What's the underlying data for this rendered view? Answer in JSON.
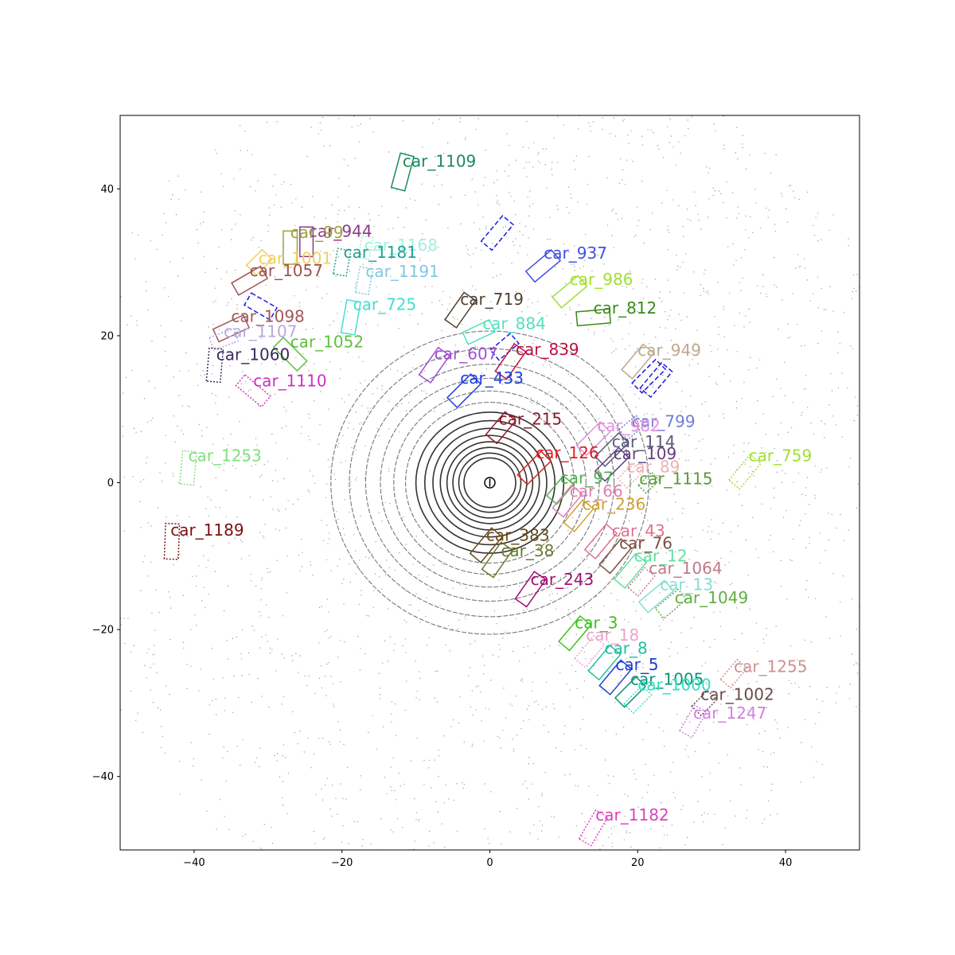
{
  "chart_data": {
    "type": "scatter",
    "title": "",
    "xlabel": "",
    "ylabel": "",
    "xlim": [
      -50,
      50
    ],
    "ylim": [
      -50,
      50
    ],
    "grid": false,
    "x_ticks": [
      -40,
      -20,
      0,
      20,
      40
    ],
    "y_ticks": [
      -40,
      -20,
      0,
      20,
      40
    ],
    "x_tick_labels": [
      "−40",
      "−20",
      "0",
      "20",
      "40"
    ],
    "y_tick_labels": [
      "−40",
      "−20",
      "0",
      "20",
      "40"
    ],
    "ego_position": [
      0,
      0
    ],
    "lidar_rings": [
      {
        "r": 3.5
      },
      {
        "r": 4.2
      },
      {
        "r": 5.0
      },
      {
        "r": 5.8
      },
      {
        "r": 6.7
      },
      {
        "r": 7.7
      },
      {
        "r": 8.8
      },
      {
        "r": 10.0
      },
      {
        "r": 11.4
      },
      {
        "r": 13.0
      },
      {
        "r": 14.8
      },
      {
        "r": 16.8
      },
      {
        "r": 19.0
      },
      {
        "r": 21.5
      }
    ],
    "boxes": [
      {
        "label": "car_1109",
        "x": -11.8,
        "y": 42.3,
        "len": 4.8,
        "wid": 1.9,
        "yaw": 75,
        "style": "solid",
        "color": "#1a8a5a",
        "lx": -11.8,
        "ly": 43.0
      },
      {
        "label": "car_944",
        "x": -24.8,
        "y": 32.8,
        "len": 4.0,
        "wid": 1.8,
        "yaw": 90,
        "style": "solid",
        "color": "#8a3a8a",
        "lx": -24.5,
        "ly": 33.5
      },
      {
        "label": "car_99",
        "x": -27.0,
        "y": 32.0,
        "len": 4.5,
        "wid": 1.9,
        "yaw": 90,
        "style": "solid",
        "color": "#a0a040",
        "lx": -27.0,
        "ly": 33.3
      },
      {
        "label": "car_1168",
        "x": -16.8,
        "y": 32.0,
        "len": 3.0,
        "wid": 1.5,
        "yaw": 80,
        "style": "dotted",
        "color": "#a0f0e0",
        "lx": -17.0,
        "ly": 31.6
      },
      {
        "label": "car_1181",
        "x": -20.0,
        "y": 30.0,
        "len": 3.5,
        "wid": 1.8,
        "yaw": 80,
        "style": "dotted",
        "color": "#20a090",
        "lx": -19.8,
        "ly": 30.6
      },
      {
        "label": "car_1001",
        "x": -31.2,
        "y": 30.0,
        "len": 3.0,
        "wid": 1.9,
        "yaw": 45,
        "style": "solid",
        "color": "#f0d060",
        "lx": -31.3,
        "ly": 29.8
      },
      {
        "label": "car_1057",
        "x": -32.5,
        "y": 27.5,
        "len": 4.5,
        "wid": 1.9,
        "yaw": 30,
        "style": "solid",
        "color": "#a05050",
        "lx": -32.5,
        "ly": 28.1
      },
      {
        "label": "car_1191",
        "x": -17.0,
        "y": 27.5,
        "len": 3.5,
        "wid": 1.8,
        "yaw": 80,
        "style": "dotted",
        "color": "#80c8e0",
        "lx": -16.8,
        "ly": 28.0
      },
      {
        "label": "car_937",
        "x": 7.2,
        "y": 29.5,
        "len": 4.5,
        "wid": 1.9,
        "yaw": 40,
        "style": "solid",
        "color": "#4050e0",
        "lx": 7.3,
        "ly": 30.5
      },
      {
        "label": "car_986",
        "x": 10.8,
        "y": 26.0,
        "len": 4.5,
        "wid": 1.9,
        "yaw": 40,
        "style": "solid",
        "color": "#a0e030",
        "lx": 10.8,
        "ly": 26.9
      },
      {
        "label": "car_719",
        "x": -4.0,
        "y": 23.5,
        "len": 4.5,
        "wid": 1.9,
        "yaw": 55,
        "style": "solid",
        "color": "#504030",
        "lx": -4.0,
        "ly": 24.2
      },
      {
        "label": "car_725",
        "x": -18.8,
        "y": 22.5,
        "len": 4.5,
        "wid": 1.9,
        "yaw": 80,
        "style": "solid",
        "color": "#40e0d0",
        "lx": -18.5,
        "ly": 23.5
      },
      {
        "label": "car_812",
        "x": 14.0,
        "y": 22.5,
        "len": 4.5,
        "wid": 1.9,
        "yaw": 5,
        "style": "solid",
        "color": "#3a8a1a",
        "lx": 14.0,
        "ly": 23.0
      },
      {
        "label": "car_884",
        "x": -1.5,
        "y": 20.5,
        "len": 4.0,
        "wid": 1.8,
        "yaw": 25,
        "style": "solid",
        "color": "#50e0c0",
        "lx": -1.0,
        "ly": 20.9
      },
      {
        "label": "car_1098",
        "x": -35.0,
        "y": 21.0,
        "len": 4.5,
        "wid": 1.9,
        "yaw": 25,
        "style": "solid",
        "color": "#a05858",
        "lx": -35.0,
        "ly": 21.9
      },
      {
        "label": "car_1107",
        "x": -36.0,
        "y": 19.5,
        "len": 3.5,
        "wid": 1.8,
        "yaw": 20,
        "style": "dotted",
        "color": "#b8a8e0",
        "lx": -36.0,
        "ly": 19.8
      },
      {
        "label": "car_1052",
        "x": -27.0,
        "y": 17.5,
        "len": 4.5,
        "wid": 1.9,
        "yaw": -45,
        "style": "solid",
        "color": "#60c040",
        "lx": -27.0,
        "ly": 18.4
      },
      {
        "label": "car_1060",
        "x": -37.2,
        "y": 16.0,
        "len": 4.5,
        "wid": 1.9,
        "yaw": 85,
        "style": "dotted",
        "color": "#3a2a5a",
        "lx": -37.0,
        "ly": 16.7
      },
      {
        "label": "car_949",
        "x": 20.0,
        "y": 16.5,
        "len": 4.5,
        "wid": 1.9,
        "yaw": 50,
        "style": "solid",
        "color": "#c0a890",
        "lx": 20.0,
        "ly": 17.3
      },
      {
        "label": "car_607",
        "x": -7.5,
        "y": 16.0,
        "len": 4.5,
        "wid": 1.9,
        "yaw": 55,
        "style": "solid",
        "color": "#a050d0",
        "lx": -7.5,
        "ly": 16.8
      },
      {
        "label": "car_839",
        "x": 2.8,
        "y": 16.5,
        "len": 4.5,
        "wid": 1.9,
        "yaw": 55,
        "style": "solid",
        "color": "#c01040",
        "lx": 3.5,
        "ly": 17.4
      },
      {
        "label": "car_1110",
        "x": -32.0,
        "y": 12.5,
        "len": 4.5,
        "wid": 1.9,
        "yaw": -40,
        "style": "dotted",
        "color": "#d030c0",
        "lx": -32.0,
        "ly": 13.1
      },
      {
        "label": "car_433",
        "x": -3.5,
        "y": 12.5,
        "len": 4.5,
        "wid": 1.9,
        "yaw": 45,
        "style": "solid",
        "color": "#2040e0",
        "lx": -4.0,
        "ly": 13.5
      },
      {
        "label": "car_215",
        "x": 1.5,
        "y": 7.5,
        "len": 4.0,
        "wid": 1.9,
        "yaw": 50,
        "style": "solid",
        "color": "#8a1a2a",
        "lx": 1.2,
        "ly": 7.9
      },
      {
        "label": "car_799",
        "x": 19.2,
        "y": 7.5,
        "len": 3.0,
        "wid": 1.8,
        "yaw": 40,
        "style": "dotted",
        "color": "#7080d0",
        "lx": 19.2,
        "ly": 7.6
      },
      {
        "label": "car_982",
        "x": 14.0,
        "y": 6.0,
        "len": 4.5,
        "wid": 1.9,
        "yaw": 45,
        "style": "solid",
        "color": "#e090e0",
        "lx": 14.5,
        "ly": 7.0
      },
      {
        "label": "car_114",
        "x": 16.5,
        "y": 4.5,
        "len": 4.5,
        "wid": 1.9,
        "yaw": 45,
        "style": "solid",
        "color": "#5a5a7a",
        "lx": 16.5,
        "ly": 4.8
      },
      {
        "label": "car_109",
        "x": 16.5,
        "y": 2.5,
        "len": 4.5,
        "wid": 1.9,
        "yaw": 45,
        "style": "solid",
        "color": "#604080",
        "lx": 16.7,
        "ly": 3.2
      },
      {
        "label": "car_126",
        "x": 6.0,
        "y": 2.0,
        "len": 4.5,
        "wid": 1.9,
        "yaw": 45,
        "style": "solid",
        "color": "#e02020",
        "lx": 6.2,
        "ly": 3.3
      },
      {
        "label": "car_759",
        "x": 34.5,
        "y": 1.5,
        "len": 4.5,
        "wid": 1.9,
        "yaw": 50,
        "style": "dotted",
        "color": "#a0e030",
        "lx": 35.0,
        "ly": 2.9
      },
      {
        "label": "car_89",
        "x": 19.0,
        "y": 1.0,
        "len": 3.0,
        "wid": 1.8,
        "yaw": 45,
        "style": "dotted",
        "color": "#f0b0b0",
        "lx": 18.5,
        "ly": 1.4
      },
      {
        "label": "car_1115",
        "x": 21.5,
        "y": 0.0,
        "len": 2.5,
        "wid": 1.5,
        "yaw": 45,
        "style": "dotted",
        "color": "#5a9a3a",
        "lx": 20.2,
        "ly": -0.2
      },
      {
        "label": "car_97",
        "x": 9.5,
        "y": -1.0,
        "len": 3.5,
        "wid": 1.8,
        "yaw": 50,
        "style": "solid",
        "color": "#50b050",
        "lx": 9.5,
        "ly": -0.1
      },
      {
        "label": "car_66",
        "x": 10.5,
        "y": -2.5,
        "len": 4.0,
        "wid": 1.9,
        "yaw": 50,
        "style": "solid",
        "color": "#e080b0",
        "lx": 10.8,
        "ly": -1.9
      },
      {
        "label": "car_236",
        "x": 12.0,
        "y": -4.5,
        "len": 4.0,
        "wid": 1.9,
        "yaw": 50,
        "style": "solid",
        "color": "#d0a030",
        "lx": 12.5,
        "ly": -3.7
      },
      {
        "label": "car_43",
        "x": 15.0,
        "y": -8.0,
        "len": 4.5,
        "wid": 1.9,
        "yaw": 50,
        "style": "solid",
        "color": "#e07090",
        "lx": 16.5,
        "ly": -7.3
      },
      {
        "label": "car_383",
        "x": -0.5,
        "y": -8.5,
        "len": 4.5,
        "wid": 1.9,
        "yaw": 50,
        "style": "solid",
        "color": "#6a4a1a",
        "lx": -0.5,
        "ly": -7.9
      },
      {
        "label": "car_76",
        "x": 17.0,
        "y": -10.0,
        "len": 4.5,
        "wid": 1.9,
        "yaw": 50,
        "style": "solid",
        "color": "#7a5040",
        "lx": 17.5,
        "ly": -9.0
      },
      {
        "label": "car_38",
        "x": 1.0,
        "y": -10.5,
        "len": 4.5,
        "wid": 1.9,
        "yaw": 55,
        "style": "solid",
        "color": "#6a7a2a",
        "lx": 1.5,
        "ly": -10.0
      },
      {
        "label": "car_12",
        "x": 19.0,
        "y": -12.0,
        "len": 4.5,
        "wid": 1.9,
        "yaw": 50,
        "style": "solid",
        "color": "#60e0a0",
        "lx": 19.5,
        "ly": -10.7
      },
      {
        "label": "car_1064",
        "x": 20.5,
        "y": -13.5,
        "len": 3.5,
        "wid": 1.8,
        "yaw": 50,
        "style": "dotted",
        "color": "#c07a8a",
        "lx": 21.5,
        "ly": -12.4
      },
      {
        "label": "car_243",
        "x": 5.5,
        "y": -14.5,
        "len": 4.5,
        "wid": 1.9,
        "yaw": 55,
        "style": "solid",
        "color": "#a01070",
        "lx": 5.5,
        "ly": -13.9
      },
      {
        "label": "car_13",
        "x": 22.5,
        "y": -15.5,
        "len": 4.5,
        "wid": 1.9,
        "yaw": 40,
        "style": "solid",
        "color": "#80e0d0",
        "lx": 23.0,
        "ly": -14.6
      },
      {
        "label": "car_1049",
        "x": 24.5,
        "y": -16.5,
        "len": 4.0,
        "wid": 1.8,
        "yaw": 40,
        "style": "dotted",
        "color": "#60b040",
        "lx": 25.0,
        "ly": -16.4
      },
      {
        "label": "car_3",
        "x": 11.5,
        "y": -20.5,
        "len": 4.5,
        "wid": 1.9,
        "yaw": 50,
        "style": "solid",
        "color": "#40c020",
        "lx": 11.5,
        "ly": -19.8
      },
      {
        "label": "car_18",
        "x": 13.5,
        "y": -23.0,
        "len": 4.0,
        "wid": 1.9,
        "yaw": 50,
        "style": "dotted",
        "color": "#f0a0d0",
        "lx": 13.0,
        "ly": -21.5
      },
      {
        "label": "car_8",
        "x": 15.5,
        "y": -24.5,
        "len": 4.5,
        "wid": 1.9,
        "yaw": 50,
        "style": "solid",
        "color": "#20c0a0",
        "lx": 15.5,
        "ly": -23.3
      },
      {
        "label": "car_5",
        "x": 17.0,
        "y": -26.5,
        "len": 4.5,
        "wid": 1.9,
        "yaw": 50,
        "style": "solid",
        "color": "#2040d0",
        "lx": 17.0,
        "ly": -25.5
      },
      {
        "label": "car_1255",
        "x": 33.0,
        "y": -26.0,
        "len": 3.5,
        "wid": 1.8,
        "yaw": 50,
        "style": "dotted",
        "color": "#d09090",
        "lx": 33.0,
        "ly": -25.8
      },
      {
        "label": "car_1005",
        "x": 19.0,
        "y": -28.5,
        "len": 4.0,
        "wid": 1.8,
        "yaw": 45,
        "style": "solid",
        "color": "#10907a",
        "lx": 19.0,
        "ly": -27.5
      },
      {
        "label": "car_1000",
        "x": 20.0,
        "y": -29.5,
        "len": 3.5,
        "wid": 1.8,
        "yaw": 45,
        "style": "dotted",
        "color": "#30e0c0",
        "lx": 20.0,
        "ly": -28.3
      },
      {
        "label": "car_1002",
        "x": 29.0,
        "y": -30.0,
        "len": 3.0,
        "wid": 1.8,
        "yaw": 45,
        "style": "dotted",
        "color": "#6a4a4a",
        "lx": 28.5,
        "ly": -29.6
      },
      {
        "label": "car_1247",
        "x": 27.5,
        "y": -32.5,
        "len": 4.0,
        "wid": 1.9,
        "yaw": 60,
        "style": "dotted",
        "color": "#d080e0",
        "lx": 27.5,
        "ly": -32.1
      },
      {
        "label": "car_1253",
        "x": -40.8,
        "y": 2.0,
        "len": 4.5,
        "wid": 1.9,
        "yaw": 85,
        "style": "dotted",
        "color": "#80e080",
        "lx": -40.8,
        "ly": 2.9
      },
      {
        "label": "car_1189",
        "x": -43.0,
        "y": -8.0,
        "len": 4.8,
        "wid": 1.9,
        "yaw": 88,
        "style": "dotted",
        "color": "#7a1010",
        "lx": -43.2,
        "ly": -7.2
      },
      {
        "label": "car_1182",
        "x": 14.0,
        "y": -47.0,
        "len": 4.5,
        "wid": 1.9,
        "yaw": 60,
        "style": "dotted",
        "color": "#e040c0",
        "lx": 14.3,
        "ly": -46.0
      }
    ],
    "unlabeled_boxes": [
      {
        "x": 1.0,
        "y": 34.0,
        "len": 4.5,
        "wid": 1.9,
        "yaw": 50,
        "style": "dashed",
        "color": "#1a1ae0"
      },
      {
        "x": -31.0,
        "y": 24.0,
        "len": 4.0,
        "wid": 1.9,
        "yaw": -30,
        "style": "dashed",
        "color": "#1a1ae0"
      },
      {
        "x": 2.0,
        "y": 18.5,
        "len": 3.5,
        "wid": 1.8,
        "yaw": 40,
        "style": "dashed",
        "color": "#1a1ae0"
      },
      {
        "x": 21.5,
        "y": 14.5,
        "len": 4.5,
        "wid": 1.9,
        "yaw": 45,
        "style": "dashed",
        "color": "#1a1ae0"
      },
      {
        "x": 22.5,
        "y": 14.0,
        "len": 4.5,
        "wid": 1.9,
        "yaw": 50,
        "style": "dashed",
        "color": "#1a1ae0"
      }
    ]
  }
}
